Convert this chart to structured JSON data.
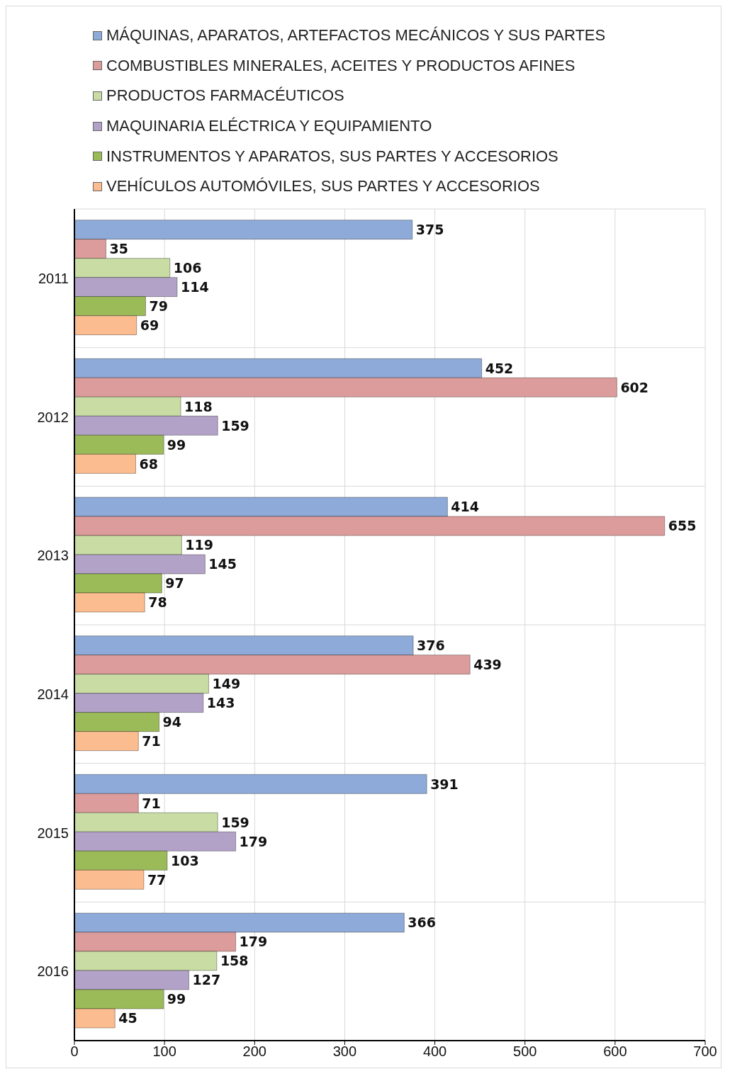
{
  "chart_data": {
    "type": "bar",
    "orientation": "horizontal",
    "categories": [
      "2011",
      "2012",
      "2013",
      "2014",
      "2015",
      "2016"
    ],
    "series": [
      {
        "name": "MÁQUINAS, APARATOS, ARTEFACTOS MECÁNICOS Y SUS PARTES",
        "color": "#8eaad8",
        "values": [
          375,
          452,
          414,
          376,
          391,
          366
        ]
      },
      {
        "name": "COMBUSTIBLES MINERALES, ACEITES Y PRODUCTOS AFINES",
        "color": "#dc9c9b",
        "values": [
          35,
          602,
          655,
          439,
          71,
          179
        ]
      },
      {
        "name": "PRODUCTOS FARMACÉUTICOS",
        "color": "#c8dca4",
        "values": [
          106,
          118,
          119,
          149,
          159,
          158
        ]
      },
      {
        "name": "MAQUINARIA ELÉCTRICA Y EQUIPAMIENTO",
        "color": "#b3a2c7",
        "values": [
          114,
          159,
          145,
          143,
          179,
          127
        ]
      },
      {
        "name": "INSTRUMENTOS Y APARATOS, SUS PARTES Y ACCESORIOS",
        "color": "#9bbb59",
        "values": [
          79,
          99,
          97,
          94,
          103,
          99
        ]
      },
      {
        "name": "VEHÍCULOS AUTOMÓVILES, SUS PARTES Y ACCESORIOS",
        "color": "#fbbd8f",
        "values": [
          69,
          68,
          78,
          71,
          77,
          45
        ]
      }
    ],
    "xlim": [
      0,
      700
    ],
    "xticks": [
      0,
      100,
      200,
      300,
      400,
      500,
      600,
      700
    ],
    "grid": true,
    "legend": "top",
    "data_labels": true
  }
}
